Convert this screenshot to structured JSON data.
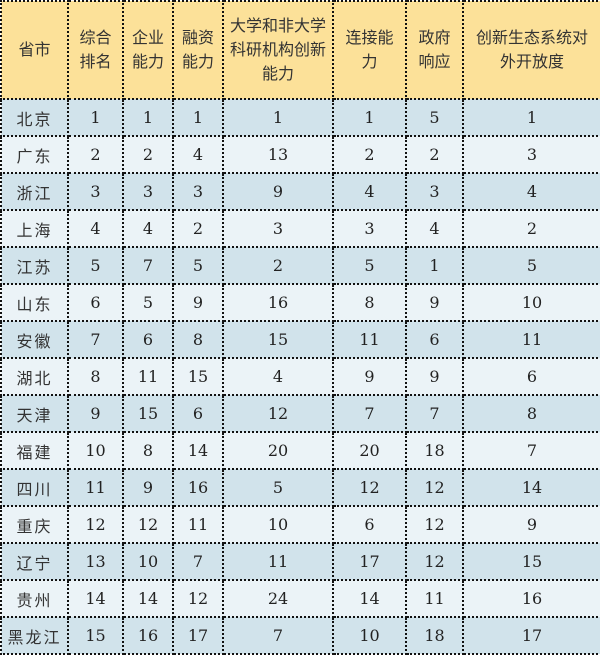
{
  "headers": [
    "省市",
    "综合排名",
    "企业能力",
    "融资能力",
    "大学和非大学科研机构创新能力",
    "连接能力",
    "政府响应",
    "创新生态系统对外开放度"
  ],
  "rows": [
    [
      "北京",
      "1",
      "1",
      "1",
      "1",
      "1",
      "5",
      "1"
    ],
    [
      "广东",
      "2",
      "2",
      "4",
      "13",
      "2",
      "2",
      "3"
    ],
    [
      "浙江",
      "3",
      "3",
      "3",
      "9",
      "4",
      "3",
      "4"
    ],
    [
      "上海",
      "4",
      "4",
      "2",
      "3",
      "3",
      "4",
      "2"
    ],
    [
      "江苏",
      "5",
      "7",
      "5",
      "2",
      "5",
      "1",
      "5"
    ],
    [
      "山东",
      "6",
      "5",
      "9",
      "16",
      "8",
      "9",
      "10"
    ],
    [
      "安徽",
      "7",
      "6",
      "8",
      "15",
      "11",
      "6",
      "11"
    ],
    [
      "湖北",
      "8",
      "11",
      "15",
      "4",
      "9",
      "9",
      "6"
    ],
    [
      "天津",
      "9",
      "15",
      "6",
      "12",
      "7",
      "7",
      "8"
    ],
    [
      "福建",
      "10",
      "8",
      "14",
      "20",
      "20",
      "18",
      "7"
    ],
    [
      "四川",
      "11",
      "9",
      "16",
      "5",
      "12",
      "12",
      "14"
    ],
    [
      "重庆",
      "12",
      "12",
      "11",
      "10",
      "6",
      "12",
      "9"
    ],
    [
      "辽宁",
      "13",
      "10",
      "7",
      "11",
      "17",
      "12",
      "15"
    ],
    [
      "贵州",
      "14",
      "14",
      "12",
      "24",
      "14",
      "11",
      "16"
    ],
    [
      "黑龙江",
      "15",
      "16",
      "17",
      "7",
      "10",
      "18",
      "17"
    ]
  ],
  "colors": {
    "header_bg": "#FCE199",
    "row_odd_bg": "#D1E3EB",
    "row_even_bg": "#EBF3F7"
  }
}
